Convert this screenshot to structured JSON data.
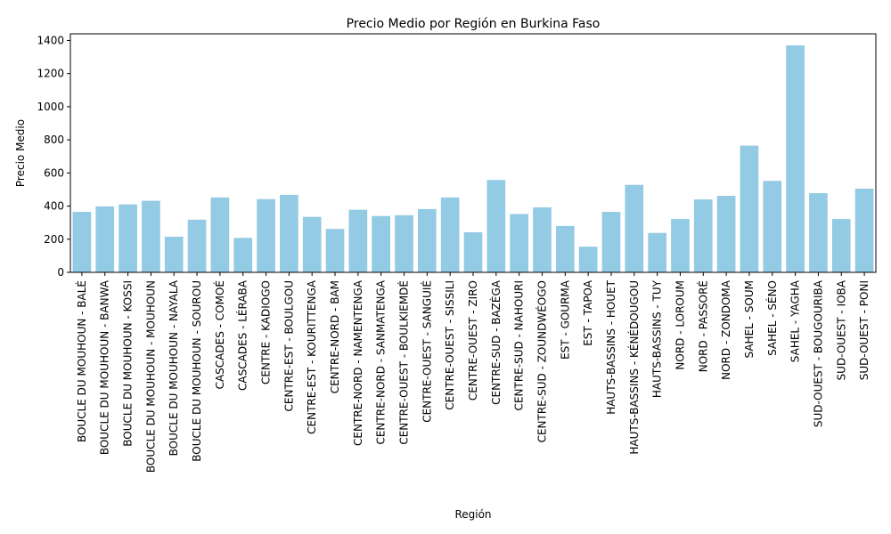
{
  "chart_data": {
    "type": "bar",
    "title": "Precio Medio por Región en Burkina Faso",
    "xlabel": "Región",
    "ylabel": "Precio Medio",
    "ylim": [
      0,
      1440
    ],
    "yticks": [
      0,
      200,
      400,
      600,
      800,
      1000,
      1200,
      1400
    ],
    "bar_color": "#93cae4",
    "grid": false,
    "categories": [
      "BOUCLE DU MOUHOUN - BALÉ",
      "BOUCLE DU MOUHOUN - BANWA",
      "BOUCLE DU MOUHOUN - KOSSI",
      "BOUCLE DU MOUHOUN - MOUHOUN",
      "BOUCLE DU MOUHOUN - NAYALA",
      "BOUCLE DU MOUHOUN - SOUROU",
      "CASCADES - COMOÉ",
      "CASCADES - LÉRABA",
      "CENTRE - KADIOGO",
      "CENTRE-EST - BOULGOU",
      "CENTRE-EST - KOURITTENGA",
      "CENTRE-NORD - BAM",
      "CENTRE-NORD - NAMENTENGA",
      "CENTRE-NORD - SANMATENGA",
      "CENTRE-OUEST - BOULKIEMDÉ",
      "CENTRE-OUEST - SANGUIÉ",
      "CENTRE-OUEST - SISSILI",
      "CENTRE-OUEST - ZIRO",
      "CENTRE-SUD - BAZÈGA",
      "CENTRE-SUD - NAHOURI",
      "CENTRE-SUD - ZOUNDWÉOGO",
      "EST - GOURMA",
      "EST - TAPOA",
      "HAUTS-BASSINS - HOUET",
      "HAUTS-BASSINS - KÉNÉDOUGOU",
      "HAUTS-BASSINS - TUY",
      "NORD - LOROUM",
      "NORD - PASSORÉ",
      "NORD - ZONDOMA",
      "SAHEL - SOUM",
      "SAHEL - SÉNO",
      "SAHEL - YAGHA",
      "SUD-OUEST - BOUGOURIBA",
      "SUD-OUEST - IOBA",
      "SUD-OUEST - PONI"
    ],
    "values": [
      365,
      398,
      410,
      432,
      215,
      318,
      452,
      208,
      442,
      468,
      335,
      262,
      378,
      340,
      345,
      382,
      452,
      242,
      558,
      352,
      392,
      280,
      155,
      365,
      528,
      238,
      322,
      440,
      462,
      765,
      552,
      1370,
      478,
      322,
      505
    ]
  }
}
